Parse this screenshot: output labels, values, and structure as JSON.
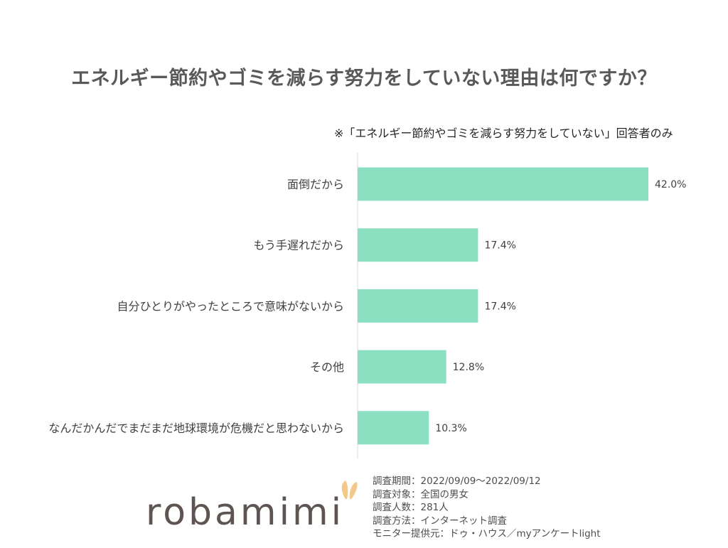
{
  "title": "エネルギー節約やゴミを減らす努力をしていない理由は何ですか？",
  "note": "※「エネルギー節約やゴミを減らす努力をしていない」回答者のみ",
  "chart_data": {
    "type": "bar",
    "orientation": "horizontal",
    "categories": [
      "面倒だから",
      "もう手遅れだから",
      "自分ひとりがやったところで意味がないから",
      "その他",
      "なんだかんだでまだまだ地球環境が危機だと思わないから"
    ],
    "values": [
      42.0,
      17.4,
      17.4,
      12.8,
      10.3
    ],
    "value_labels": [
      "42.0%",
      "17.4%",
      "17.4%",
      "12.8%",
      "10.3%"
    ],
    "unit": "%",
    "xlim": [
      0,
      50
    ],
    "bar_color": "#8ce0c2",
    "grid": false,
    "legend": "none"
  },
  "survey": [
    "調査期間：2022/09/09～2022/09/12",
    "調査対象：全国の男女",
    "調査人数：281人",
    "調査方法：インターネット調査",
    "モニター提供元：ドゥ・ハウス／myアンケートlight"
  ],
  "logo": {
    "text": "robamimi",
    "text_color": "#5e5553",
    "ear_color": "#f3c98a"
  }
}
